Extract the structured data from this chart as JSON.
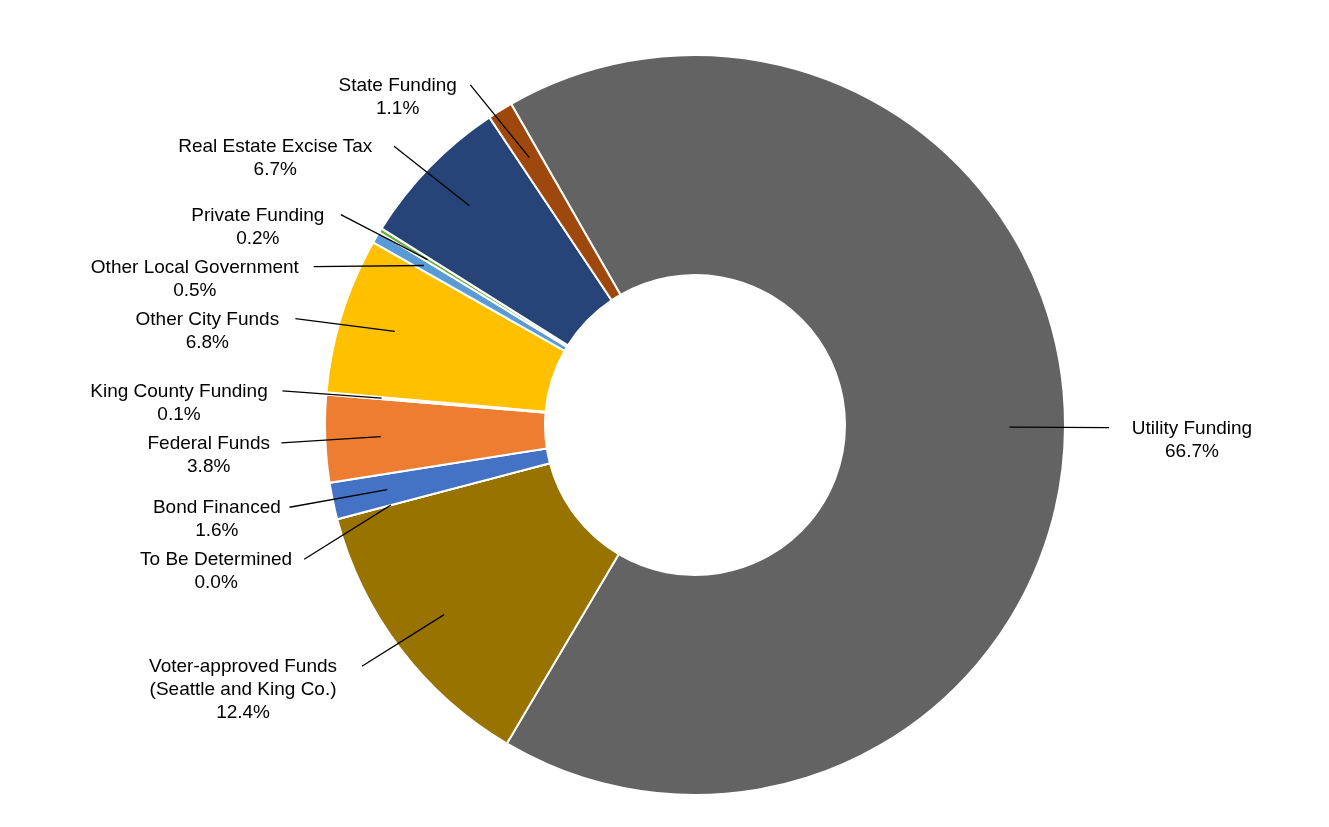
{
  "chart_data": {
    "type": "donut",
    "categories": [
      "Utility Funding",
      "Voter-approved Funds (Seattle and King Co.)",
      "To Be Determined",
      "Bond Financed",
      "Federal Funds",
      "King County Funding",
      "Other City Funds",
      "Other Local Government",
      "Private Funding",
      "Real Estate Excise Tax",
      "State Funding"
    ],
    "values": [
      66.7,
      12.4,
      0.0,
      1.6,
      3.8,
      0.1,
      6.8,
      0.5,
      0.2,
      6.7,
      1.1
    ],
    "value_labels": [
      "66.7%",
      "12.4%",
      "0.0%",
      "1.6%",
      "3.8%",
      "0.1%",
      "6.8%",
      "0.5%",
      "0.2%",
      "6.7%",
      "1.1%"
    ],
    "colors": [
      "#636363",
      "#997300",
      "#255e91",
      "#4472c4",
      "#ed7d31",
      "#d9d9d9",
      "#ffc000",
      "#5b9bd5",
      "#70ad47",
      "#264478",
      "#9e480e"
    ]
  }
}
